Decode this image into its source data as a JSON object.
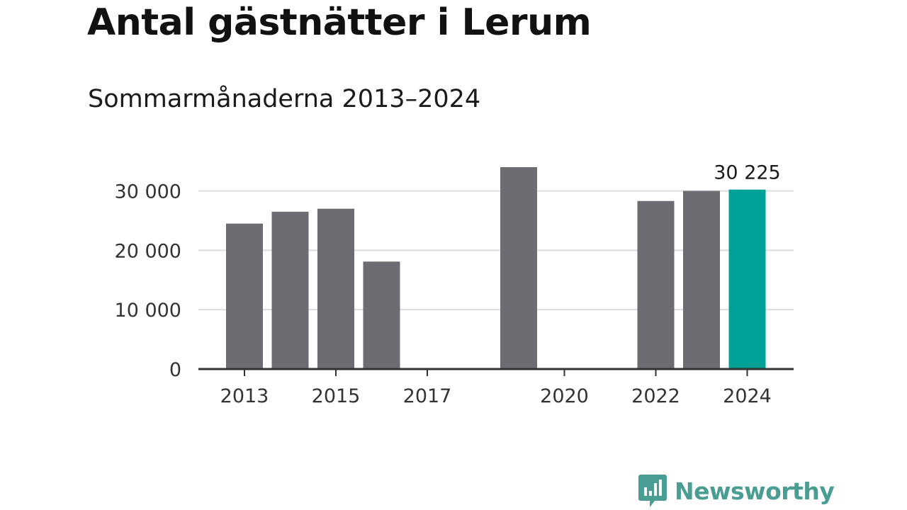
{
  "header": {
    "title": "Antal gästnätter i Lerum",
    "subtitle": "Sommarmånaderna 2013–2024"
  },
  "chart_data": {
    "type": "bar",
    "categories": [
      "2013",
      "2014",
      "2015",
      "2016",
      "2017",
      "2018",
      "2019",
      "2020",
      "2021",
      "2022",
      "2023",
      "2024"
    ],
    "values": [
      24500,
      26500,
      27000,
      18100,
      null,
      null,
      34000,
      null,
      null,
      28300,
      30000,
      30225
    ],
    "highlight_index": 11,
    "highlight_label": "30 225",
    "ylim": [
      0,
      34000
    ],
    "yticks": [
      0,
      10000,
      20000,
      30000
    ],
    "ytick_labels": [
      "0",
      "10 000",
      "20 000",
      "30 000"
    ],
    "xtick_labels": [
      {
        "index": 0,
        "label": "2013"
      },
      {
        "index": 2,
        "label": "2015"
      },
      {
        "index": 4,
        "label": "2017"
      },
      {
        "index": 7,
        "label": "2020"
      },
      {
        "index": 9,
        "label": "2022"
      },
      {
        "index": 11,
        "label": "2024"
      }
    ],
    "colors": {
      "bar": "#6d6c73",
      "highlight": "#00a196",
      "grid": "#dcdcdc",
      "axis": "#333333"
    },
    "grid": true
  },
  "brand": {
    "name": "Newsworthy",
    "color": "#4a9d93"
  }
}
